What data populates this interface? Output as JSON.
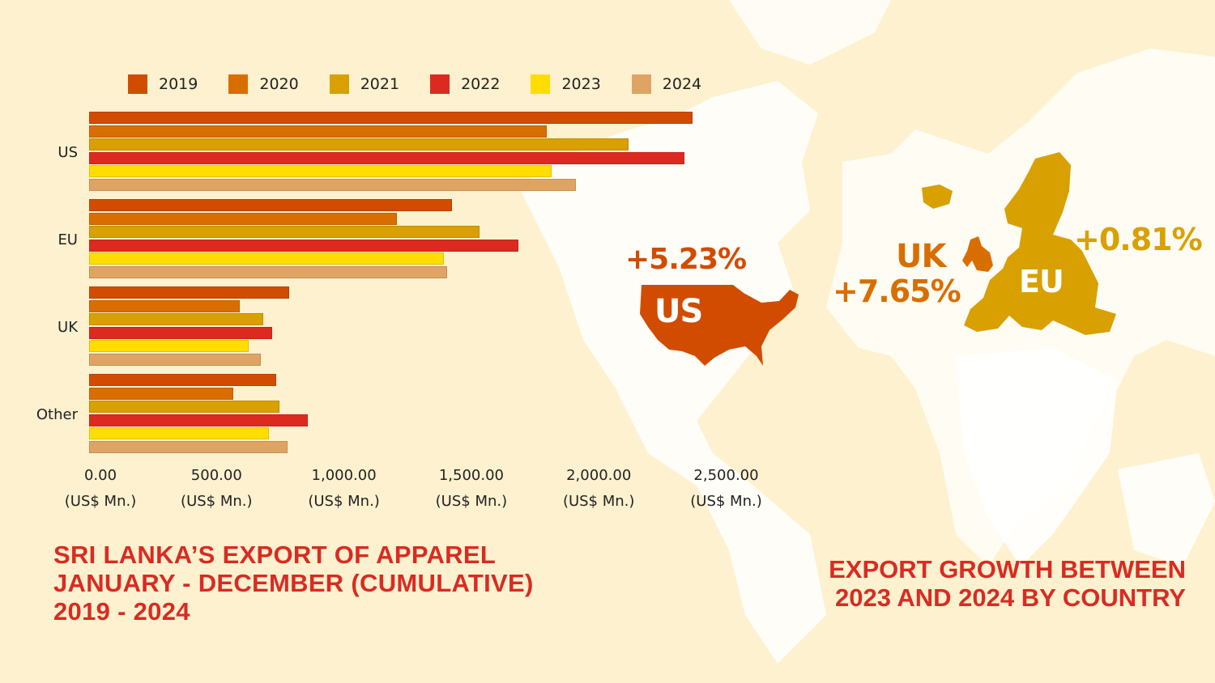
{
  "chart_data": {
    "type": "bar",
    "orientation": "horizontal",
    "title": "SRI LANKA'S EXPORT OF APPAREL JANUARY - DECEMBER (CUMULATIVE) 2019 - 2024",
    "xlabel": "(US$ Mn.)",
    "ylabel": "",
    "categories": [
      "US",
      "EU",
      "UK",
      "Other"
    ],
    "series": [
      {
        "name": "2019",
        "color": "#d14c00",
        "values": [
          2369,
          1425,
          785,
          735
        ]
      },
      {
        "name": "2020",
        "color": "#d96e00",
        "values": [
          1797,
          1208,
          591,
          566
        ]
      },
      {
        "name": "2021",
        "color": "#d8a000",
        "values": [
          2118,
          1533,
          684,
          747
        ]
      },
      {
        "name": "2022",
        "color": "#dc2a20",
        "values": [
          2337,
          1685,
          719,
          859
        ]
      },
      {
        "name": "2023",
        "color": "#ffdd00",
        "values": [
          1816,
          1393,
          626,
          706
        ]
      },
      {
        "name": "2024",
        "color": "#dfa464",
        "values": [
          1911,
          1405,
          674,
          779
        ]
      }
    ],
    "xlim": [
      0,
      2500
    ],
    "xticks": [
      "0.00",
      "500.00",
      "1,000.00",
      "1,500.00",
      "2,000.00",
      "2,500.00"
    ],
    "xtick_unit": "(US$ Mn.)",
    "legend_position": "top",
    "grid": false
  },
  "title_left": [
    "SRI LANKA’S EXPORT OF APPAREL",
    "JANUARY - DECEMBER (CUMULATIVE)",
    "2019 - 2024"
  ],
  "title_right": [
    "EXPORT GROWTH BETWEEN",
    "2023 AND 2024 BY COUNTRY"
  ],
  "growth": {
    "us": {
      "label": "US",
      "value": "+5.23%",
      "color": "#d14c00"
    },
    "uk": {
      "label": "UK",
      "value": "+7.65%",
      "color": "#d96e00"
    },
    "eu": {
      "label": "EU",
      "value": "+0.81%",
      "color": "#d8a000"
    }
  }
}
